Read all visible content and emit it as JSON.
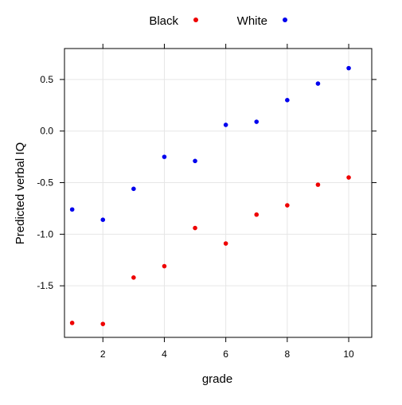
{
  "chart_data": {
    "type": "scatter",
    "title": "",
    "xlabel": "grade",
    "ylabel": "Predicted verbal IQ",
    "xlim": [
      0.75,
      10.75
    ],
    "ylim": [
      -2.0,
      0.8
    ],
    "x_ticks": [
      2,
      4,
      6,
      8,
      10
    ],
    "y_ticks": [
      0.5,
      0.0,
      -0.5,
      -1.0,
      -1.5
    ],
    "y_tick_labels": [
      "0.5",
      "0.0",
      "-0.5",
      "-1.0",
      "-1.5"
    ],
    "grid": true,
    "legend_position": "top",
    "series": [
      {
        "name": "Black",
        "color": "#ee0000",
        "x": [
          1,
          2,
          3,
          4,
          5,
          6,
          7,
          8,
          9,
          10
        ],
        "y": [
          -1.86,
          -1.87,
          -1.42,
          -1.31,
          -0.94,
          -1.09,
          -0.81,
          -0.72,
          -0.52,
          -0.45
        ]
      },
      {
        "name": "White",
        "color": "#0000ee",
        "x": [
          1,
          2,
          3,
          4,
          5,
          6,
          7,
          8,
          9,
          10
        ],
        "y": [
          -0.76,
          -0.86,
          -0.56,
          -0.25,
          -0.29,
          0.06,
          0.09,
          0.3,
          0.46,
          0.61
        ]
      }
    ]
  }
}
